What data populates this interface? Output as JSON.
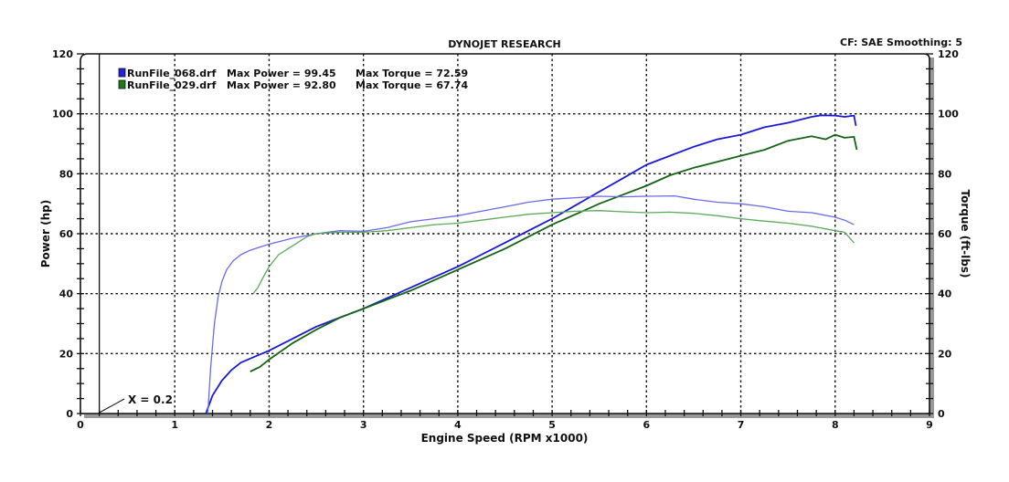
{
  "header": {
    "title": "DYNOJET RESEARCH",
    "info": "CF: SAE  Smoothing: 5"
  },
  "legend": [
    {
      "file": "RunFile_068.drf",
      "power": "Max Power = 99.45",
      "torque": "Max Torque = 72.59",
      "color": "#2222dd"
    },
    {
      "file": "RunFile_029.drf",
      "power": "Max Power = 92.80",
      "torque": "Max Torque = 67.74",
      "color": "#1c7a1c"
    }
  ],
  "marker": {
    "x": 0.2,
    "label": "X = 0.2"
  },
  "chart_data": {
    "type": "line",
    "title": "DYNOJET RESEARCH",
    "xlabel": "Engine Speed (RPM x1000)",
    "ylabel": "Power (hp)",
    "y2label": "Torque (ft-lbs)",
    "xlim": [
      0,
      9
    ],
    "ylim": [
      0,
      120
    ],
    "y2lim": [
      0,
      120
    ],
    "xticks": [
      "0",
      "1",
      "2",
      "3",
      "4",
      "5",
      "6",
      "7",
      "8",
      "9"
    ],
    "yticks": [
      "0",
      "20",
      "40",
      "60",
      "80",
      "100",
      "120"
    ],
    "grid": true,
    "legend_position": "top-left",
    "series": [
      {
        "name": "RunFile_068.drf Power",
        "color": "#1a1ad6",
        "x": [
          1.33,
          1.4,
          1.5,
          1.6,
          1.7,
          1.85,
          2.0,
          2.25,
          2.5,
          2.75,
          3.0,
          3.25,
          3.5,
          3.75,
          4.0,
          4.25,
          4.5,
          4.75,
          5.0,
          5.25,
          5.5,
          5.75,
          6.0,
          6.25,
          6.5,
          6.75,
          7.0,
          7.25,
          7.5,
          7.75,
          7.85,
          8.0,
          8.1,
          8.2,
          8.22
        ],
        "y": [
          0,
          6,
          11,
          14.5,
          17,
          19,
          21,
          25,
          29,
          32,
          35,
          38.5,
          42,
          45.5,
          49,
          53,
          57,
          61,
          65,
          69.5,
          74,
          78.5,
          83,
          86,
          89,
          91.5,
          93,
          95.5,
          97,
          99,
          99.5,
          99.4,
          99,
          99.4,
          96
        ]
      },
      {
        "name": "RunFile_029.drf Power",
        "color": "#146414",
        "x": [
          1.8,
          1.9,
          2.0,
          2.25,
          2.5,
          2.75,
          3.0,
          3.25,
          3.5,
          3.75,
          4.0,
          4.25,
          4.5,
          4.75,
          5.0,
          5.25,
          5.5,
          5.75,
          6.0,
          6.25,
          6.5,
          6.75,
          7.0,
          7.25,
          7.5,
          7.75,
          7.9,
          8.0,
          8.1,
          8.2,
          8.23
        ],
        "y": [
          14,
          15.5,
          18,
          23.5,
          28,
          32,
          35,
          38,
          41,
          44.5,
          48,
          51.5,
          55,
          59,
          63,
          66.5,
          70,
          73,
          76,
          79.5,
          82,
          84,
          86,
          88,
          91,
          92.5,
          91.5,
          93,
          92,
          92.3,
          88
        ]
      },
      {
        "name": "RunFile_068.drf Torque",
        "color": "#6a6ae6",
        "x": [
          1.35,
          1.38,
          1.42,
          1.46,
          1.5,
          1.55,
          1.62,
          1.7,
          1.8,
          1.9,
          2.0,
          2.25,
          2.5,
          2.75,
          3.0,
          3.25,
          3.5,
          3.75,
          4.0,
          4.25,
          4.5,
          4.75,
          5.0,
          5.25,
          5.5,
          5.75,
          6.0,
          6.3,
          6.5,
          6.75,
          7.0,
          7.25,
          7.5,
          7.75,
          8.0,
          8.1,
          8.2
        ],
        "y": [
          0,
          15,
          30,
          39,
          44,
          48,
          51,
          53,
          54.5,
          55.5,
          56.5,
          58.5,
          60,
          61,
          60.8,
          62,
          64,
          65,
          66,
          67.5,
          69,
          70.5,
          71.5,
          72,
          72.5,
          72.3,
          72.5,
          72.6,
          71.5,
          70.5,
          70,
          69,
          67.5,
          67,
          65.5,
          64.5,
          63
        ]
      },
      {
        "name": "RunFile_029.drf Torque",
        "color": "#5aaa5a",
        "x": [
          1.83,
          1.88,
          1.93,
          2.0,
          2.1,
          2.2,
          2.3,
          2.4,
          2.5,
          2.75,
          3.0,
          3.25,
          3.5,
          3.75,
          4.0,
          4.25,
          4.5,
          4.75,
          5.0,
          5.25,
          5.5,
          5.75,
          6.0,
          6.25,
          6.5,
          6.75,
          7.0,
          7.25,
          7.5,
          7.75,
          8.0,
          8.1,
          8.2
        ],
        "y": [
          40,
          42,
          45,
          49,
          53,
          55,
          57,
          59,
          60,
          60.5,
          60.5,
          61,
          62,
          63,
          63.5,
          64.5,
          65.5,
          66.5,
          67,
          67.5,
          67.7,
          67.3,
          67,
          67.2,
          66.8,
          66,
          65,
          64.2,
          63.5,
          62.5,
          61,
          60.5,
          57
        ]
      }
    ]
  }
}
